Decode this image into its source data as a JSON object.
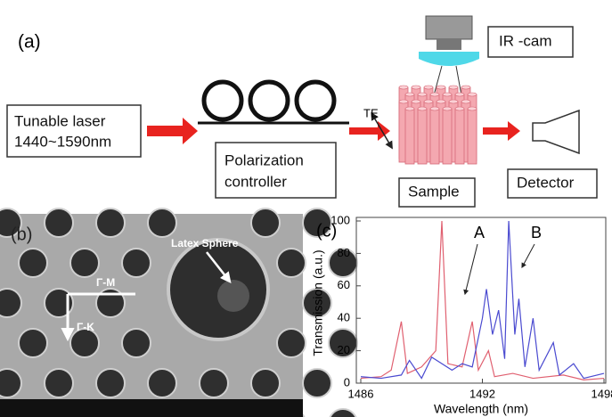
{
  "panel_a": {
    "label": "(a)",
    "laser": [
      "Tunable laser",
      "1440~1590nm"
    ],
    "controller": [
      "Polarization",
      "controller"
    ],
    "polarization": "TE",
    "camera": "IR -cam",
    "sample": "Sample",
    "detector": "Detector"
  },
  "panel_b": {
    "label": "(b)",
    "sphere": "Latex Sphere",
    "dir_m": "Γ-M",
    "dir_k": "Γ-K"
  },
  "chart_data": {
    "type": "line",
    "label": "(c)",
    "xlabel": "Wavelength (nm)",
    "ylabel": "Transmission (a.u.)",
    "xlim": [
      1486,
      1498
    ],
    "xticks": [
      1486,
      1492,
      1498
    ],
    "ylim": [
      0,
      100
    ],
    "yticks": [
      0,
      20,
      40,
      60,
      80,
      100
    ],
    "annotations": [
      "A",
      "B"
    ],
    "series": [
      {
        "name": "A",
        "color": "#e06070",
        "x": [
          1486,
          1487,
          1487.5,
          1488,
          1488.3,
          1489,
          1489.7,
          1490,
          1490.3,
          1491,
          1491.5,
          1491.8,
          1492.3,
          1492.6,
          1493.5,
          1494.5,
          1496,
          1497,
          1498
        ],
        "values": [
          3,
          4,
          8,
          38,
          6,
          10,
          20,
          100,
          12,
          10,
          38,
          8,
          20,
          4,
          6,
          3,
          5,
          2,
          3
        ]
      },
      {
        "name": "B",
        "color": "#4a4ad0",
        "x": [
          1486,
          1487,
          1488,
          1488.4,
          1489,
          1489.5,
          1490.5,
          1491,
          1491.5,
          1492,
          1492.2,
          1492.5,
          1492.8,
          1493.1,
          1493.3,
          1493.6,
          1493.8,
          1494.1,
          1494.5,
          1494.8,
          1495.5,
          1495.8,
          1496.5,
          1497,
          1498
        ],
        "values": [
          4,
          3,
          5,
          14,
          3,
          16,
          8,
          12,
          10,
          40,
          58,
          30,
          45,
          15,
          100,
          30,
          52,
          10,
          40,
          8,
          25,
          5,
          12,
          3,
          6
        ]
      }
    ]
  }
}
